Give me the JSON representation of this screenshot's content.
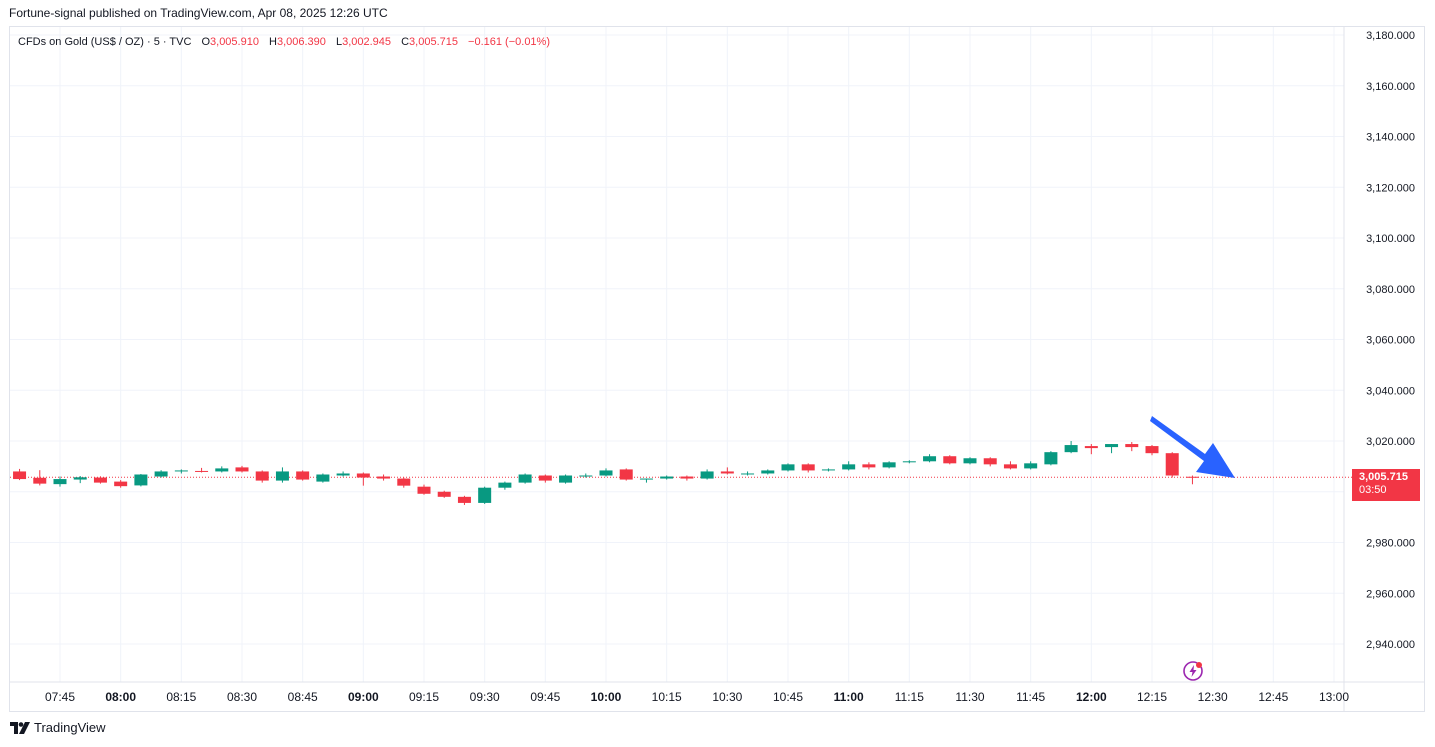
{
  "header": {
    "published": "Fortune-signal published on TradingView.com, Apr 08, 2025 12:26 UTC"
  },
  "legend": {
    "symbol": "CFDs on Gold (US$ / OZ) · 5 · TVC",
    "open_label": "O",
    "open": "3,005.910",
    "high_label": "H",
    "high": "3,006.390",
    "low_label": "L",
    "low": "3,002.945",
    "close_label": "C",
    "close": "3,005.715",
    "change": "−0.161 (−0.01%)"
  },
  "price_tag": {
    "price": "3,005.715",
    "countdown": "03:50"
  },
  "footer": {
    "brand": "TradingView"
  },
  "colors": {
    "up": "#089981",
    "down": "#f23645",
    "grid": "#f0f3fa",
    "arrow": "#2962ff",
    "bolt": "#9c27b0"
  },
  "chart_data": {
    "type": "candlestick",
    "title": "CFDs on Gold (US$ / OZ) · 5 · TVC",
    "ylim": [
      2922,
      3185
    ],
    "y_ticks": [
      "3,180.000",
      "3,160.000",
      "3,140.000",
      "3,120.000",
      "3,100.000",
      "3,080.000",
      "3,060.000",
      "3,040.000",
      "3,020.000",
      "3,000.000",
      "2,980.000",
      "2,960.000",
      "2,940.000"
    ],
    "y_tick_values": [
      3180,
      3160,
      3140,
      3120,
      3100,
      3080,
      3060,
      3040,
      3020,
      3000,
      2980,
      2960,
      2940
    ],
    "x_ticks": [
      {
        "label": "07:45",
        "bold": false,
        "min": 465
      },
      {
        "label": "08:00",
        "bold": true,
        "min": 480
      },
      {
        "label": "08:15",
        "bold": false,
        "min": 495
      },
      {
        "label": "08:30",
        "bold": false,
        "min": 510
      },
      {
        "label": "08:45",
        "bold": false,
        "min": 525
      },
      {
        "label": "09:00",
        "bold": true,
        "min": 540
      },
      {
        "label": "09:15",
        "bold": false,
        "min": 555
      },
      {
        "label": "09:30",
        "bold": false,
        "min": 570
      },
      {
        "label": "09:45",
        "bold": false,
        "min": 585
      },
      {
        "label": "10:00",
        "bold": true,
        "min": 600
      },
      {
        "label": "10:15",
        "bold": false,
        "min": 615
      },
      {
        "label": "10:30",
        "bold": false,
        "min": 630
      },
      {
        "label": "10:45",
        "bold": false,
        "min": 645
      },
      {
        "label": "11:00",
        "bold": true,
        "min": 660
      },
      {
        "label": "11:15",
        "bold": false,
        "min": 675
      },
      {
        "label": "11:30",
        "bold": false,
        "min": 690
      },
      {
        "label": "11:45",
        "bold": false,
        "min": 705
      },
      {
        "label": "12:00",
        "bold": true,
        "min": 720
      },
      {
        "label": "12:15",
        "bold": false,
        "min": 735
      },
      {
        "label": "12:30",
        "bold": false,
        "min": 750
      },
      {
        "label": "12:45",
        "bold": false,
        "min": 765
      },
      {
        "label": "13:00",
        "bold": false,
        "min": 780
      }
    ],
    "x_range_minutes": [
      454.3,
      785.5
    ],
    "current_price": 3005.715,
    "candles": [
      {
        "t": 455,
        "o": 3008.0,
        "h": 3009.0,
        "l": 3004.6,
        "c": 3005.0
      },
      {
        "t": 460,
        "o": 3005.5,
        "h": 3008.5,
        "l": 3002.5,
        "c": 3003.2
      },
      {
        "t": 465,
        "o": 3003.0,
        "h": 3006.0,
        "l": 3002.0,
        "c": 3005.0
      },
      {
        "t": 470,
        "o": 3004.8,
        "h": 3006.2,
        "l": 3003.4,
        "c": 3005.7
      },
      {
        "t": 475,
        "o": 3005.6,
        "h": 3006.1,
        "l": 3003.2,
        "c": 3003.6
      },
      {
        "t": 480,
        "o": 3004.0,
        "h": 3004.6,
        "l": 3001.6,
        "c": 3002.2
      },
      {
        "t": 485,
        "o": 3002.5,
        "h": 3007.0,
        "l": 3002.1,
        "c": 3006.8
      },
      {
        "t": 490,
        "o": 3006.0,
        "h": 3008.5,
        "l": 3005.6,
        "c": 3008.0
      },
      {
        "t": 495,
        "o": 3008.0,
        "h": 3008.8,
        "l": 3007.2,
        "c": 3008.4
      },
      {
        "t": 500,
        "o": 3008.2,
        "h": 3009.4,
        "l": 3007.6,
        "c": 3008.0
      },
      {
        "t": 505,
        "o": 3008.0,
        "h": 3010.0,
        "l": 3007.6,
        "c": 3009.2
      },
      {
        "t": 510,
        "o": 3009.6,
        "h": 3010.2,
        "l": 3007.6,
        "c": 3008.0
      },
      {
        "t": 515,
        "o": 3008.0,
        "h": 3008.4,
        "l": 3003.6,
        "c": 3004.4
      },
      {
        "t": 520,
        "o": 3004.4,
        "h": 3009.6,
        "l": 3003.6,
        "c": 3008.0
      },
      {
        "t": 525,
        "o": 3008.0,
        "h": 3008.4,
        "l": 3004.4,
        "c": 3004.8
      },
      {
        "t": 530,
        "o": 3004.0,
        "h": 3007.2,
        "l": 3003.6,
        "c": 3006.8
      },
      {
        "t": 535,
        "o": 3006.4,
        "h": 3008.0,
        "l": 3006.0,
        "c": 3007.2
      },
      {
        "t": 540,
        "o": 3007.2,
        "h": 3007.6,
        "l": 3002.4,
        "c": 3005.6
      },
      {
        "t": 545,
        "o": 3006.0,
        "h": 3006.8,
        "l": 3004.4,
        "c": 3005.2
      },
      {
        "t": 550,
        "o": 3005.2,
        "h": 3005.6,
        "l": 3001.6,
        "c": 3002.4
      },
      {
        "t": 555,
        "o": 3002.0,
        "h": 3002.8,
        "l": 2998.8,
        "c": 2999.2
      },
      {
        "t": 560,
        "o": 3000.0,
        "h": 3000.4,
        "l": 2997.6,
        "c": 2998.0
      },
      {
        "t": 565,
        "o": 2998.0,
        "h": 2998.4,
        "l": 2994.8,
        "c": 2995.6
      },
      {
        "t": 570,
        "o": 2995.6,
        "h": 3002.0,
        "l": 2995.2,
        "c": 3001.6
      },
      {
        "t": 575,
        "o": 3001.6,
        "h": 3004.0,
        "l": 3000.8,
        "c": 3003.6
      },
      {
        "t": 580,
        "o": 3003.6,
        "h": 3007.2,
        "l": 3003.2,
        "c": 3006.8
      },
      {
        "t": 585,
        "o": 3006.4,
        "h": 3006.8,
        "l": 3003.6,
        "c": 3004.4
      },
      {
        "t": 590,
        "o": 3003.6,
        "h": 3006.8,
        "l": 3003.2,
        "c": 3006.4
      },
      {
        "t": 595,
        "o": 3006.0,
        "h": 3007.2,
        "l": 3005.6,
        "c": 3006.4
      },
      {
        "t": 600,
        "o": 3006.4,
        "h": 3009.2,
        "l": 3006.0,
        "c": 3008.4
      },
      {
        "t": 605,
        "o": 3008.8,
        "h": 3009.2,
        "l": 3004.4,
        "c": 3004.8
      },
      {
        "t": 610,
        "o": 3004.8,
        "h": 3005.2,
        "l": 3003.6,
        "c": 3005.2
      },
      {
        "t": 615,
        "o": 3005.2,
        "h": 3006.4,
        "l": 3004.8,
        "c": 3006.0
      },
      {
        "t": 620,
        "o": 3006.0,
        "h": 3006.4,
        "l": 3004.4,
        "c": 3005.2
      },
      {
        "t": 625,
        "o": 3005.2,
        "h": 3008.8,
        "l": 3004.8,
        "c": 3008.0
      },
      {
        "t": 630,
        "o": 3008.0,
        "h": 3009.6,
        "l": 3006.8,
        "c": 3007.2
      },
      {
        "t": 635,
        "o": 3007.2,
        "h": 3008.0,
        "l": 3006.4,
        "c": 3007.2
      },
      {
        "t": 640,
        "o": 3007.2,
        "h": 3008.8,
        "l": 3006.8,
        "c": 3008.4
      },
      {
        "t": 645,
        "o": 3008.4,
        "h": 3011.2,
        "l": 3008.0,
        "c": 3010.8
      },
      {
        "t": 650,
        "o": 3010.8,
        "h": 3011.2,
        "l": 3007.6,
        "c": 3008.4
      },
      {
        "t": 655,
        "o": 3008.4,
        "h": 3009.2,
        "l": 3008.0,
        "c": 3008.8
      },
      {
        "t": 660,
        "o": 3008.8,
        "h": 3012.0,
        "l": 3008.4,
        "c": 3010.8
      },
      {
        "t": 665,
        "o": 3010.8,
        "h": 3011.6,
        "l": 3008.8,
        "c": 3009.6
      },
      {
        "t": 670,
        "o": 3009.6,
        "h": 3012.0,
        "l": 3009.2,
        "c": 3011.6
      },
      {
        "t": 675,
        "o": 3011.6,
        "h": 3012.4,
        "l": 3011.2,
        "c": 3012.0
      },
      {
        "t": 680,
        "o": 3012.0,
        "h": 3014.8,
        "l": 3011.6,
        "c": 3014.0
      },
      {
        "t": 685,
        "o": 3014.0,
        "h": 3014.4,
        "l": 3010.8,
        "c": 3011.2
      },
      {
        "t": 690,
        "o": 3011.2,
        "h": 3013.6,
        "l": 3010.8,
        "c": 3013.2
      },
      {
        "t": 695,
        "o": 3013.2,
        "h": 3013.6,
        "l": 3010.0,
        "c": 3010.8
      },
      {
        "t": 700,
        "o": 3010.8,
        "h": 3012.0,
        "l": 3008.8,
        "c": 3009.2
      },
      {
        "t": 705,
        "o": 3009.2,
        "h": 3012.0,
        "l": 3008.8,
        "c": 3011.2
      },
      {
        "t": 710,
        "o": 3010.8,
        "h": 3016.0,
        "l": 3010.4,
        "c": 3015.6
      },
      {
        "t": 715,
        "o": 3015.6,
        "h": 3020.0,
        "l": 3015.2,
        "c": 3018.4
      },
      {
        "t": 720,
        "o": 3018.0,
        "h": 3018.8,
        "l": 3014.8,
        "c": 3017.2
      },
      {
        "t": 725,
        "o": 3017.6,
        "h": 3018.8,
        "l": 3015.2,
        "c": 3018.8
      },
      {
        "t": 730,
        "o": 3018.8,
        "h": 3019.6,
        "l": 3016.0,
        "c": 3017.6
      },
      {
        "t": 735,
        "o": 3018.0,
        "h": 3018.4,
        "l": 3014.4,
        "c": 3015.2
      },
      {
        "t": 740,
        "o": 3015.2,
        "h": 3015.6,
        "l": 3005.6,
        "c": 3006.4
      },
      {
        "t": 745,
        "o": 3005.91,
        "h": 3006.39,
        "l": 3002.945,
        "c": 3005.715
      }
    ]
  }
}
